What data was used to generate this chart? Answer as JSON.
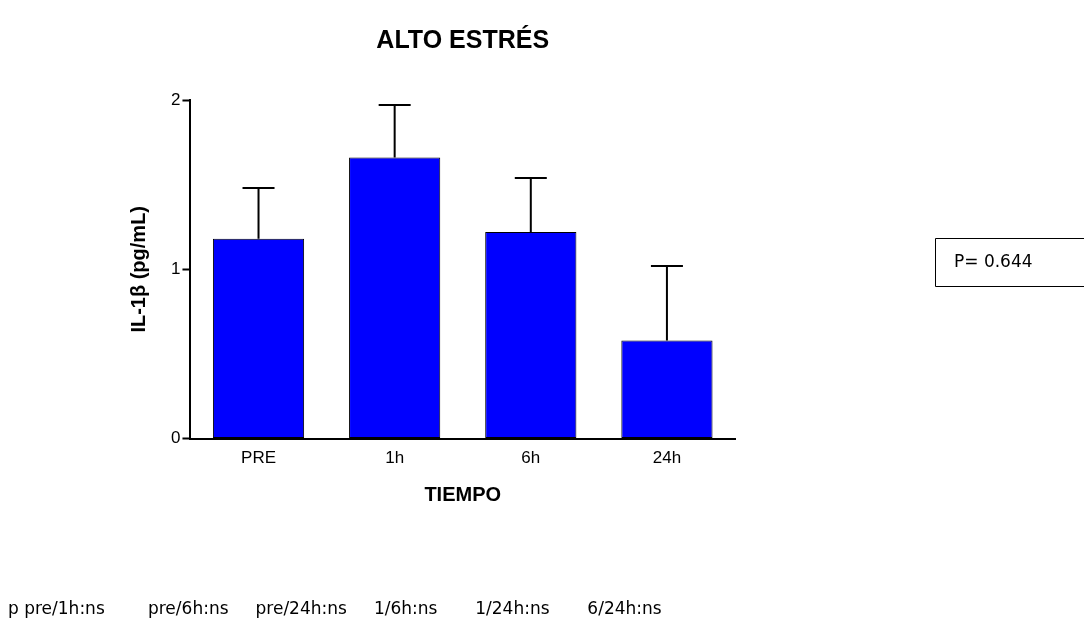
{
  "chart_data": {
    "type": "bar",
    "title": "ALTO ESTRÉS",
    "xlabel": "TIEMPO",
    "ylabel": "IL-1β (pg/mL)",
    "categories": [
      "PRE",
      "1h",
      "6h",
      "24h"
    ],
    "values": [
      1.18,
      1.66,
      1.22,
      0.58
    ],
    "errors": [
      [
        1.18,
        1.48
      ],
      [
        1.66,
        1.97
      ],
      [
        1.22,
        1.54
      ],
      [
        0.58,
        1.02
      ]
    ],
    "color": "#0000ff",
    "ylim": [
      0,
      2
    ],
    "yticks": [
      0,
      1,
      2
    ],
    "grid": false,
    "legend": false,
    "annotations": [
      "P= 0.644",
      "p pre/1h:ns        pre/6h:ns     pre/24h:ns     1/6h:ns       1/24h:ns       6/24h:ns"
    ]
  }
}
